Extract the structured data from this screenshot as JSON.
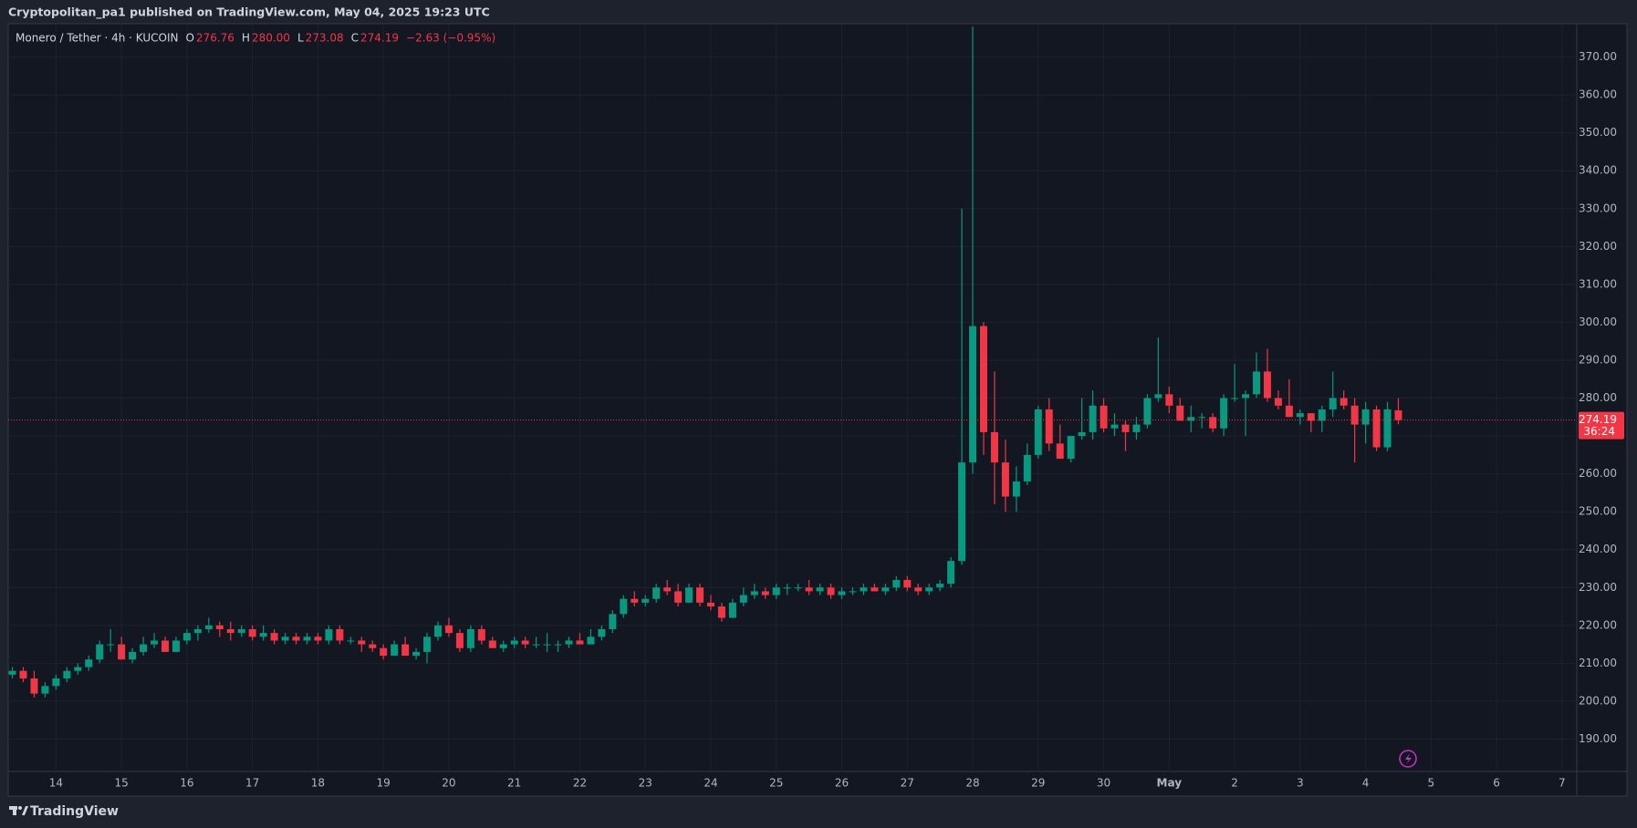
{
  "header": {
    "publisher": "Cryptopolitan_pa1 published on TradingView.com, May 04, 2025 19:23 UTC",
    "brand": "TradingView"
  },
  "chart_data": {
    "type": "candlestick",
    "symbol": "Monero / Tether · 4h · KUCOIN",
    "ohlc_legend": [
      {
        "key": "O",
        "value": "276.76"
      },
      {
        "key": "H",
        "value": "280.00"
      },
      {
        "key": "L",
        "value": "273.08"
      },
      {
        "key": "C",
        "value": "274.19"
      }
    ],
    "change": "−2.63 (−0.95%)",
    "up_color": "#089981",
    "down_color": "#f23645",
    "grid": true,
    "open": [
      207,
      208,
      206,
      202,
      204,
      206,
      208,
      209,
      211,
      215,
      215,
      211,
      213,
      215,
      216,
      213,
      216,
      218,
      219,
      220,
      219,
      218,
      219,
      217,
      218,
      216,
      217,
      216,
      217,
      216,
      219,
      216,
      216,
      215,
      214,
      212,
      215,
      212,
      213,
      217,
      220,
      218,
      214,
      219,
      216,
      214,
      215,
      216,
      215,
      215,
      215,
      215,
      216,
      215,
      217,
      219,
      223,
      227,
      226,
      227,
      230,
      229,
      226,
      230,
      226,
      225,
      222,
      226,
      228,
      229,
      228,
      230,
      230,
      230,
      229,
      230,
      228,
      229,
      229,
      230,
      229,
      230,
      232,
      230,
      229,
      230,
      231,
      237,
      263,
      299,
      271,
      263,
      254,
      258,
      265,
      277,
      268,
      264,
      270,
      271,
      278,
      272,
      273,
      271,
      273,
      280,
      281,
      278,
      274,
      275,
      275,
      272,
      280,
      280,
      281,
      287,
      280,
      278,
      275,
      276,
      274,
      277,
      280,
      278,
      273,
      277,
      267,
      276.76
    ],
    "high": [
      209,
      209,
      208,
      205,
      207,
      209,
      210,
      212,
      216,
      219,
      217,
      214,
      217,
      218,
      217,
      217,
      219,
      220,
      222,
      221,
      221,
      220,
      220,
      220,
      219,
      218,
      218,
      218,
      218,
      220,
      220,
      217,
      217,
      216,
      215,
      216,
      217,
      214,
      218,
      221,
      222,
      219,
      220,
      220,
      217,
      216,
      217,
      217,
      217,
      218,
      216,
      217,
      218,
      219,
      220,
      224,
      228,
      229,
      228,
      231,
      232,
      231,
      231,
      231,
      228,
      226,
      227,
      230,
      231,
      230,
      231,
      231,
      231,
      232,
      231,
      231,
      230,
      230,
      231,
      231,
      231,
      233,
      233,
      231,
      231,
      232,
      238,
      330,
      378,
      300,
      287,
      269,
      262,
      268,
      278,
      280,
      273,
      270,
      280,
      282,
      280,
      276,
      274,
      275,
      281,
      296,
      283,
      280,
      278,
      276,
      276,
      281,
      289,
      282,
      292,
      293,
      282,
      285,
      277,
      276,
      278,
      287,
      282,
      280,
      279,
      278,
      279,
      280
    ],
    "low": [
      206,
      205,
      201,
      201,
      203,
      205,
      207,
      208,
      210,
      213,
      211,
      210,
      212,
      214,
      213,
      213,
      215,
      216,
      218,
      217,
      216,
      217,
      216,
      216,
      215,
      215,
      215,
      215,
      215,
      215,
      215,
      215,
      213,
      213,
      211,
      212,
      212,
      211,
      210,
      216,
      217,
      213,
      213,
      215,
      214,
      213,
      214,
      214,
      214,
      213,
      213,
      214,
      215,
      215,
      216,
      218,
      222,
      225,
      225,
      226,
      228,
      225,
      226,
      225,
      224,
      221,
      222,
      225,
      227,
      227,
      227,
      228,
      229,
      228,
      228,
      227,
      227,
      228,
      228,
      229,
      228,
      229,
      229,
      228,
      228,
      229,
      230,
      236,
      260,
      265,
      252,
      250,
      250,
      257,
      264,
      266,
      264,
      263,
      269,
      269,
      271,
      270,
      266,
      269,
      272,
      279,
      276,
      274,
      271,
      272,
      271,
      270,
      279,
      270,
      280,
      279,
      277,
      275,
      273,
      271,
      271,
      275,
      277,
      263,
      268,
      266,
      266,
      273.08
    ],
    "close": [
      208,
      206,
      202,
      204,
      206,
      208,
      209,
      211,
      215,
      215,
      211,
      213,
      215,
      216,
      213,
      216,
      218,
      219,
      220,
      219,
      218,
      219,
      217,
      218,
      216,
      217,
      216,
      217,
      216,
      219,
      216,
      216,
      215,
      214,
      212,
      215,
      212,
      213,
      217,
      220,
      218,
      214,
      219,
      216,
      214,
      215,
      216,
      215,
      215,
      215,
      215,
      216,
      215,
      217,
      219,
      223,
      227,
      226,
      227,
      230,
      229,
      226,
      230,
      226,
      225,
      222,
      226,
      228,
      229,
      228,
      230,
      230,
      230,
      229,
      230,
      228,
      229,
      229,
      230,
      229,
      230,
      232,
      230,
      229,
      230,
      231,
      237,
      263,
      299,
      271,
      263,
      254,
      258,
      265,
      277,
      268,
      264,
      270,
      271,
      278,
      272,
      273,
      271,
      273,
      280,
      281,
      278,
      274,
      275,
      275,
      272,
      280,
      280,
      281,
      287,
      280,
      278,
      275,
      276,
      274,
      277,
      280,
      278,
      273,
      277,
      267,
      277,
      274.19
    ],
    "last_price": {
      "value": 274.19,
      "label": "274.19"
    },
    "countdown": "36:24",
    "xlim": [
      -0.38,
      143.35
    ],
    "xticks": [
      {
        "value": 4,
        "label": "14"
      },
      {
        "value": 10,
        "label": "15"
      },
      {
        "value": 16,
        "label": "16"
      },
      {
        "value": 22,
        "label": "17"
      },
      {
        "value": 28,
        "label": "18"
      },
      {
        "value": 34,
        "label": "19"
      },
      {
        "value": 40,
        "label": "20"
      },
      {
        "value": 46,
        "label": "21"
      },
      {
        "value": 52,
        "label": "22"
      },
      {
        "value": 58,
        "label": "23"
      },
      {
        "value": 64,
        "label": "24"
      },
      {
        "value": 70,
        "label": "25"
      },
      {
        "value": 76,
        "label": "26"
      },
      {
        "value": 82,
        "label": "27"
      },
      {
        "value": 88,
        "label": "28"
      },
      {
        "value": 94,
        "label": "29"
      },
      {
        "value": 100,
        "label": "30"
      },
      {
        "value": 106,
        "label": "May"
      },
      {
        "value": 112,
        "label": "2"
      },
      {
        "value": 118,
        "label": "3"
      },
      {
        "value": 124,
        "label": "4"
      },
      {
        "value": 130,
        "label": "5"
      },
      {
        "value": 136,
        "label": "6"
      },
      {
        "value": 142,
        "label": "7"
      }
    ],
    "ylim": [
      181.45,
      378.8
    ],
    "yticks": [
      {
        "value": 190,
        "label": "190.00"
      },
      {
        "value": 200,
        "label": "200.00"
      },
      {
        "value": 210,
        "label": "210.00"
      },
      {
        "value": 220,
        "label": "220.00"
      },
      {
        "value": 230,
        "label": "230.00"
      },
      {
        "value": 240,
        "label": "240.00"
      },
      {
        "value": 250,
        "label": "250.00"
      },
      {
        "value": 260,
        "label": "260.00"
      },
      {
        "value": 270,
        "label": "270.00"
      },
      {
        "value": 280,
        "label": "280.00"
      },
      {
        "value": 290,
        "label": "290.00"
      },
      {
        "value": 300,
        "label": "300.00"
      },
      {
        "value": 310,
        "label": "310.00"
      },
      {
        "value": 320,
        "label": "320.00"
      },
      {
        "value": 330,
        "label": "330.00"
      },
      {
        "value": 340,
        "label": "340.00"
      },
      {
        "value": 350,
        "label": "350.00"
      },
      {
        "value": 360,
        "label": "360.00"
      },
      {
        "value": 370,
        "label": "370.00"
      }
    ]
  }
}
